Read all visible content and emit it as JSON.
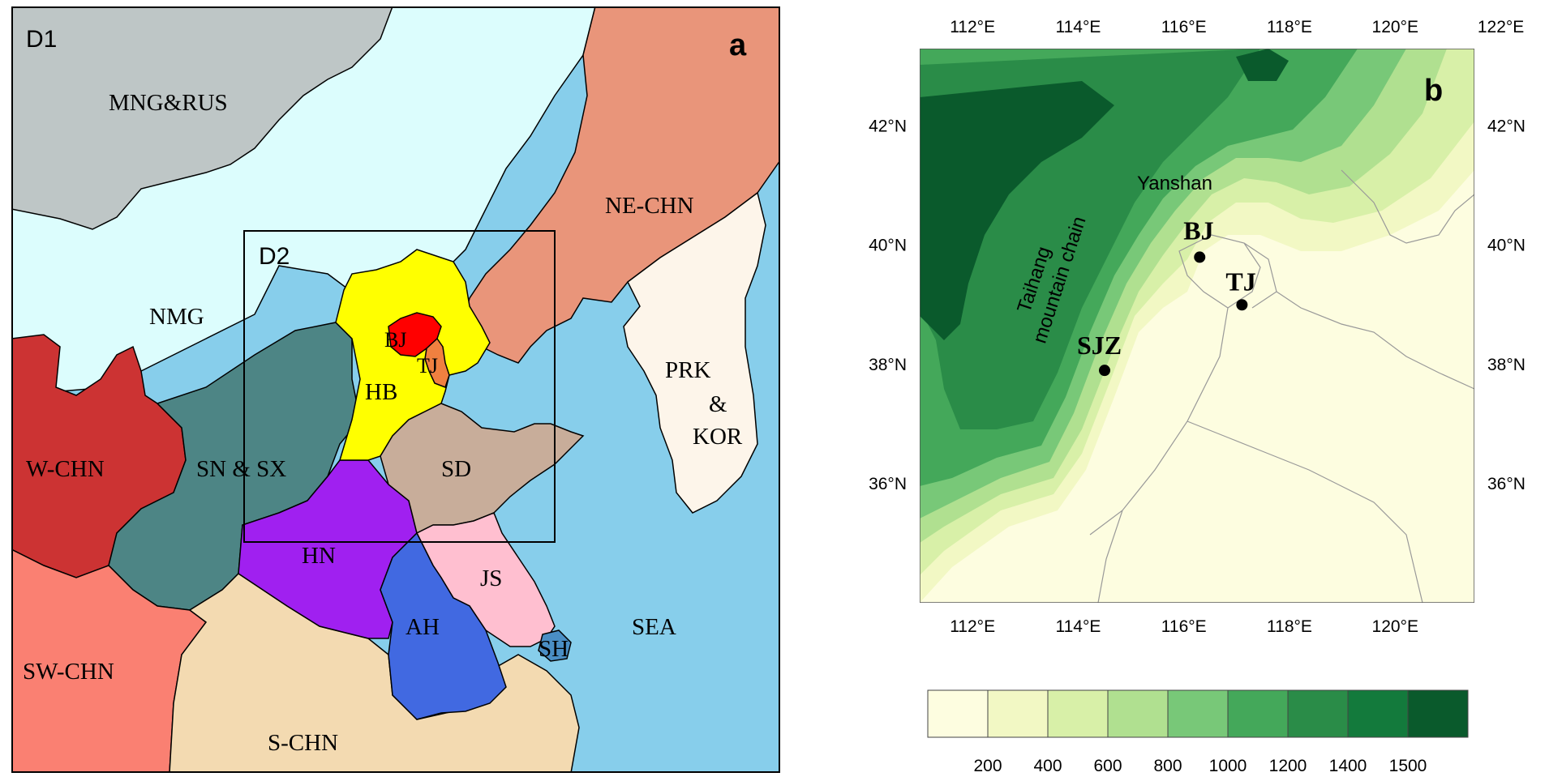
{
  "panel_a": {
    "tag": "a",
    "domains": {
      "outer": "D1",
      "inner": "D2"
    },
    "colors": {
      "land_default": "#cde3e8",
      "north_plain": "#dcfdfd",
      "sea": "#87ceeb",
      "mongolia_russia": "#bec6c6",
      "northeast": "#e9957a",
      "korea": "#fdf5ea",
      "west": "#cc3333",
      "southwest": "#fa8072",
      "south": "#f3dab1",
      "shaanxi_shanxi": "#4d8585",
      "hebei": "#ffff00",
      "beijing": "#ff0000",
      "tianjin": "#f08040",
      "shandong": "#c8ad9a",
      "henan": "#a020f0",
      "anhui": "#4169e1",
      "jiangsu": "#ffbfd0",
      "shanghai": "#4a8ec4"
    },
    "regions": {
      "mongolia_russia": "MNG&RUS",
      "inner_mongolia": "NMG",
      "northeast": "NE-CHN",
      "korea_top": "PRK",
      "korea_amp": "&",
      "korea_bottom": "KOR",
      "west": "W-CHN",
      "shaanxi_shanxi": "SN & SX",
      "beijing": "BJ",
      "tianjin": "TJ",
      "hebei": "HB",
      "shandong": "SD",
      "henan": "HN",
      "jiangsu": "JS",
      "anhui": "AH",
      "shanghai": "SH",
      "sea": "SEA",
      "southwest": "SW-CHN",
      "south": "S-CHN"
    }
  },
  "panel_b": {
    "tag": "b",
    "lon_ticks": [
      "112°E",
      "114°E",
      "116°E",
      "118°E",
      "120°E",
      "122°E"
    ],
    "lon_ticks_bottom": [
      "112°E",
      "114°E",
      "116°E",
      "118°E",
      "120°E"
    ],
    "lat_ticks": [
      "42°N",
      "40°N",
      "38°N",
      "36°N"
    ],
    "extent": {
      "lon_min": 111,
      "lon_max": 121.5,
      "lat_min": 34,
      "lat_max": 43.3
    },
    "features": {
      "yanshan": "Yanshan",
      "taihang_line1": "Taihang",
      "taihang_line2": "mountain chain"
    },
    "cities": [
      {
        "name": "BJ",
        "lon": 116.3,
        "lat": 39.8
      },
      {
        "name": "TJ",
        "lon": 117.1,
        "lat": 39.0
      },
      {
        "name": "SJZ",
        "lon": 114.5,
        "lat": 37.9
      }
    ],
    "legend": {
      "labels": [
        "200",
        "400",
        "600",
        "800",
        "1000",
        "1200",
        "1400",
        "1500"
      ],
      "colors": [
        "#fdfde0",
        "#f2f8c4",
        "#d8f0a8",
        "#b0e090",
        "#78c878",
        "#44a85a",
        "#2a8c48",
        "#137a3c",
        "#0a5a2c"
      ]
    }
  }
}
